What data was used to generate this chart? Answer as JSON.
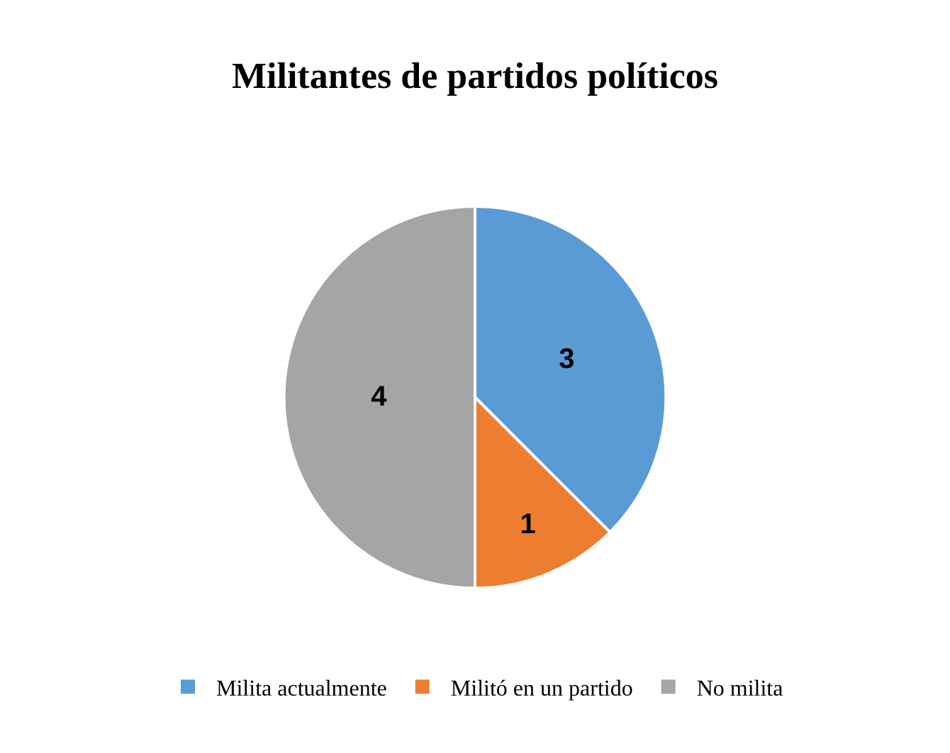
{
  "chart_data": {
    "type": "pie",
    "title": "Militantes de partidos políticos",
    "categories": [
      "Milita actualmente",
      "Militó en un partido",
      "No milita"
    ],
    "values": [
      3,
      1,
      4
    ],
    "colors": [
      "#5b9bd5",
      "#ed7d31",
      "#a5a5a5"
    ],
    "data_labels": true,
    "legend": "bottom"
  }
}
